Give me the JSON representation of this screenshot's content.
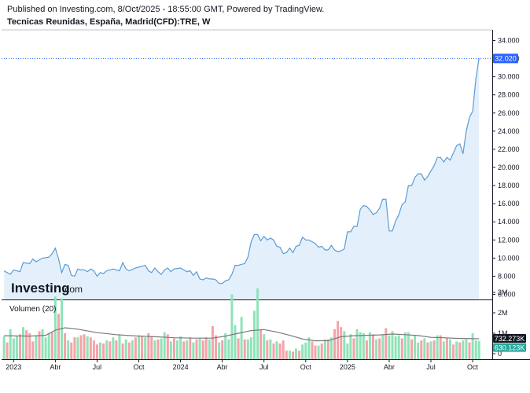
{
  "header": {
    "published": "Published on Investing.com, 8/Oct/2025 - 18:55:00 GMT, Powered by TradingView.",
    "symbol": "Tecnicas Reunidas, España, Madrid(CFD):TRE, W"
  },
  "logo": {
    "main": "Investing",
    "suffix": ".com"
  },
  "colors": {
    "price_line": "#5b9bd5",
    "price_fill": "#e3f0fb",
    "price_badge": "#2962ff",
    "vol_up": "#8fe3b8",
    "vol_down": "#f5a3a8",
    "vol_ma": "#7a7a7a",
    "badge_ma": "#131722",
    "badge_vol": "#26a69a"
  },
  "volume_panel": {
    "label": "Volumen (20)"
  },
  "chart_data": [
    {
      "type": "area",
      "title": "Tecnicas Reunidas, España, Madrid(CFD):TRE, W",
      "x_label_ticks": [
        "2023",
        "Abr",
        "Jul",
        "Oct",
        "2024",
        "Abr",
        "Jul",
        "Oct",
        "2025",
        "Abr",
        "Jul",
        "Oct"
      ],
      "x_label_weeks": [
        0,
        13,
        26,
        39,
        52,
        65,
        78,
        91,
        104,
        117,
        130,
        143
      ],
      "y_ticks": [
        "34.000",
        "32.000",
        "30.000",
        "28.000",
        "26.000",
        "24.000",
        "22.000",
        "20.000",
        "18.000",
        "16.000",
        "14.000",
        "12.000",
        "10.000",
        "8.000",
        "6.000"
      ],
      "ylim": [
        6,
        34
      ],
      "last_value_label": "32.020",
      "last_value": 32.02,
      "points": [
        [
          -3,
          8.6
        ],
        [
          -1,
          8.2
        ],
        [
          0,
          8.7
        ],
        [
          2,
          8.5
        ],
        [
          3,
          9.5
        ],
        [
          5,
          9.4
        ],
        [
          6,
          9.9
        ],
        [
          7,
          9.6
        ],
        [
          9,
          10.0
        ],
        [
          11,
          10.1
        ],
        [
          12,
          10.5
        ],
        [
          13,
          11.1
        ],
        [
          14,
          9.9
        ],
        [
          15,
          8.4
        ],
        [
          16,
          9.3
        ],
        [
          17,
          9.2
        ],
        [
          18,
          8.1
        ],
        [
          19,
          8.0
        ],
        [
          20,
          8.8
        ],
        [
          21,
          8.7
        ],
        [
          22,
          8.7
        ],
        [
          23,
          8.5
        ],
        [
          24,
          8.8
        ],
        [
          25,
          8.6
        ],
        [
          26,
          8.0
        ],
        [
          27,
          8.4
        ],
        [
          28,
          8.3
        ],
        [
          29,
          8.6
        ],
        [
          31,
          8.8
        ],
        [
          33,
          8.6
        ],
        [
          34,
          9.5
        ],
        [
          35,
          8.8
        ],
        [
          36,
          8.6
        ],
        [
          38,
          8.9
        ],
        [
          40,
          9.1
        ],
        [
          41,
          9.2
        ],
        [
          42,
          8.6
        ],
        [
          43,
          8.4
        ],
        [
          44,
          8.9
        ],
        [
          45,
          8.5
        ],
        [
          46,
          8.2
        ],
        [
          47,
          8.7
        ],
        [
          48,
          8.9
        ],
        [
          49,
          8.5
        ],
        [
          50,
          8.8
        ],
        [
          52,
          8.9
        ],
        [
          53,
          8.7
        ],
        [
          54,
          8.5
        ],
        [
          55,
          8.6
        ],
        [
          56,
          8.1
        ],
        [
          57,
          8.5
        ],
        [
          58,
          7.7
        ],
        [
          59,
          7.6
        ],
        [
          60,
          7.8
        ],
        [
          61,
          7.7
        ],
        [
          62,
          7.7
        ],
        [
          63,
          7.6
        ],
        [
          64,
          7.2
        ],
        [
          65,
          7.2
        ],
        [
          66,
          7.5
        ],
        [
          67,
          7.6
        ],
        [
          68,
          8.2
        ],
        [
          69,
          9.2
        ],
        [
          70,
          9.2
        ],
        [
          71,
          9.3
        ],
        [
          72,
          9.4
        ],
        [
          73,
          10.1
        ],
        [
          74,
          11.8
        ],
        [
          75,
          12.6
        ],
        [
          76,
          12.6
        ],
        [
          77,
          11.9
        ],
        [
          78,
          12.4
        ],
        [
          79,
          12.0
        ],
        [
          80,
          12.2
        ],
        [
          81,
          12.0
        ],
        [
          82,
          11.3
        ],
        [
          83,
          11.2
        ],
        [
          84,
          10.5
        ],
        [
          85,
          10.6
        ],
        [
          86,
          11.1
        ],
        [
          87,
          10.6
        ],
        [
          88,
          11.3
        ],
        [
          89,
          11.4
        ],
        [
          90,
          12.3
        ],
        [
          91,
          12.0
        ],
        [
          92,
          12.0
        ],
        [
          93,
          11.8
        ],
        [
          94,
          11.6
        ],
        [
          95,
          11.2
        ],
        [
          96,
          11.3
        ],
        [
          97,
          10.9
        ],
        [
          98,
          10.9
        ],
        [
          99,
          11.4
        ],
        [
          100,
          10.9
        ],
        [
          101,
          10.7
        ],
        [
          102,
          10.8
        ],
        [
          103,
          11.0
        ],
        [
          104,
          12.9
        ],
        [
          105,
          12.9
        ],
        [
          106,
          13.5
        ],
        [
          107,
          13.5
        ],
        [
          108,
          15.4
        ],
        [
          109,
          15.8
        ],
        [
          110,
          15.7
        ],
        [
          111,
          15.3
        ],
        [
          112,
          14.8
        ],
        [
          113,
          15.0
        ],
        [
          114,
          15.5
        ],
        [
          115,
          16.5
        ],
        [
          116,
          16.5
        ],
        [
          117,
          13.0
        ],
        [
          118,
          13.0
        ],
        [
          119,
          14.1
        ],
        [
          120,
          14.8
        ],
        [
          121,
          15.9
        ],
        [
          122,
          16.2
        ],
        [
          123,
          18.0
        ],
        [
          124,
          18.0
        ],
        [
          125,
          18.9
        ],
        [
          126,
          19.3
        ],
        [
          127,
          19.3
        ],
        [
          128,
          18.6
        ],
        [
          129,
          19.0
        ],
        [
          130,
          19.6
        ],
        [
          131,
          20.2
        ],
        [
          132,
          21.1
        ],
        [
          133,
          21.1
        ],
        [
          134,
          20.6
        ],
        [
          135,
          21.1
        ],
        [
          136,
          20.8
        ],
        [
          137,
          21.6
        ],
        [
          138,
          22.4
        ],
        [
          139,
          22.6
        ],
        [
          140,
          21.5
        ],
        [
          141,
          24.0
        ],
        [
          142,
          25.5
        ],
        [
          143,
          26.2
        ],
        [
          144,
          29.8
        ],
        [
          145,
          32.02
        ]
      ]
    },
    {
      "type": "bar",
      "title": "Volumen (20)",
      "y_ticks": [
        "3M",
        "2M",
        "1M",
        "0"
      ],
      "ylim": [
        0,
        3400000
      ],
      "ma_value_label": "732.273K",
      "volume_value_label": "630.123K",
      "ma_value": 732273,
      "last_volume": 630123,
      "volumes": [
        -3,
        850000,
        1,
        -2,
        550000,
        0,
        -1,
        1200000,
        1,
        0,
        750000,
        1,
        1,
        850000,
        1,
        2,
        950000,
        0,
        3,
        1300000,
        1,
        4,
        1150000,
        0,
        5,
        1000000,
        0,
        6,
        600000,
        0,
        7,
        900000,
        1,
        8,
        1100000,
        0,
        9,
        1200000,
        1,
        10,
        800000,
        1,
        11,
        1000000,
        1,
        12,
        1050000,
        0,
        13,
        2800000,
        1,
        14,
        1950000,
        0,
        15,
        2700000,
        1,
        16,
        1000000,
        0,
        17,
        650000,
        1,
        18,
        550000,
        0,
        19,
        800000,
        0,
        20,
        800000,
        1,
        21,
        900000,
        0,
        22,
        950000,
        0,
        23,
        850000,
        1,
        24,
        800000,
        0,
        25,
        650000,
        0,
        26,
        450000,
        0,
        27,
        550000,
        1,
        28,
        500000,
        0,
        29,
        650000,
        1,
        30,
        600000,
        0,
        31,
        800000,
        1,
        32,
        650000,
        0,
        33,
        950000,
        1,
        34,
        500000,
        0,
        35,
        700000,
        1,
        36,
        550000,
        0,
        37,
        650000,
        1,
        38,
        800000,
        0,
        39,
        900000,
        1,
        40,
        850000,
        0,
        41,
        800000,
        1,
        42,
        1000000,
        0,
        43,
        850000,
        0,
        44,
        650000,
        1,
        45,
        700000,
        0,
        46,
        750000,
        1,
        47,
        1050000,
        1,
        48,
        950000,
        0,
        49,
        600000,
        1,
        50,
        750000,
        0,
        51,
        650000,
        1,
        52,
        850000,
        1,
        53,
        600000,
        0,
        54,
        650000,
        1,
        55,
        800000,
        0,
        56,
        550000,
        1,
        57,
        700000,
        0,
        58,
        750000,
        1,
        59,
        650000,
        0,
        60,
        800000,
        0,
        61,
        700000,
        1,
        62,
        1350000,
        0,
        63,
        900000,
        0,
        64,
        550000,
        1,
        65,
        650000,
        0,
        66,
        1000000,
        1,
        67,
        700000,
        1,
        68,
        2900000,
        1,
        69,
        1400000,
        1,
        70,
        750000,
        0,
        71,
        1800000,
        1,
        72,
        700000,
        0,
        73,
        700000,
        1,
        74,
        800000,
        1,
        75,
        2100000,
        1,
        76,
        3200000,
        1,
        77,
        1200000,
        0,
        78,
        950000,
        1,
        79,
        650000,
        0,
        80,
        700000,
        1,
        81,
        500000,
        0,
        82,
        600000,
        1,
        83,
        500000,
        0,
        84,
        650000,
        0,
        85,
        150000,
        0,
        86,
        150000,
        1,
        87,
        100000,
        0,
        88,
        250000,
        1,
        89,
        150000,
        0,
        90,
        450000,
        1,
        91,
        550000,
        1,
        92,
        800000,
        1,
        93,
        600000,
        0,
        94,
        400000,
        0,
        95,
        400000,
        1,
        96,
        500000,
        0,
        97,
        700000,
        1,
        98,
        700000,
        0,
        99,
        800000,
        1,
        100,
        1200000,
        0,
        101,
        1600000,
        0,
        102,
        1300000,
        0,
        103,
        1100000,
        1,
        104,
        500000,
        1,
        105,
        950000,
        1,
        106,
        750000,
        0,
        107,
        1200000,
        1,
        108,
        1050000,
        1,
        109,
        1000000,
        1,
        110,
        650000,
        0,
        111,
        1050000,
        1,
        112,
        950000,
        0,
        113,
        700000,
        1,
        114,
        750000,
        0,
        115,
        900000,
        1,
        116,
        1250000,
        0,
        117,
        900000,
        1,
        118,
        1100000,
        1,
        119,
        850000,
        1,
        120,
        900000,
        1,
        121,
        750000,
        0,
        122,
        1050000,
        1,
        123,
        1050000,
        1,
        124,
        700000,
        0,
        125,
        900000,
        1,
        126,
        550000,
        1,
        127,
        650000,
        0,
        128,
        750000,
        1,
        129,
        550000,
        0,
        130,
        600000,
        1,
        131,
        650000,
        0,
        132,
        900000,
        1,
        133,
        900000,
        0,
        134,
        600000,
        1,
        135,
        750000,
        0,
        136,
        700000,
        1,
        137,
        450000,
        0,
        138,
        600000,
        1,
        139,
        550000,
        0,
        140,
        650000,
        1,
        141,
        700000,
        1,
        142,
        550000,
        0,
        143,
        1000000,
        1,
        144,
        650000,
        1,
        145,
        630123,
        1
      ],
      "ma_line": [
        [
          -3,
          880000
        ],
        [
          5,
          860000
        ],
        [
          10,
          900000
        ],
        [
          13,
          1150000
        ],
        [
          16,
          1270000
        ],
        [
          20,
          1200000
        ],
        [
          26,
          1030000
        ],
        [
          32,
          930000
        ],
        [
          38,
          870000
        ],
        [
          44,
          830000
        ],
        [
          50,
          780000
        ],
        [
          56,
          760000
        ],
        [
          62,
          760000
        ],
        [
          66,
          860000
        ],
        [
          70,
          1000000
        ],
        [
          74,
          1130000
        ],
        [
          78,
          1180000
        ],
        [
          82,
          1060000
        ],
        [
          86,
          900000
        ],
        [
          90,
          720000
        ],
        [
          94,
          630000
        ],
        [
          98,
          640000
        ],
        [
          102,
          830000
        ],
        [
          106,
          880000
        ],
        [
          110,
          900000
        ],
        [
          114,
          920000
        ],
        [
          118,
          960000
        ],
        [
          122,
          930000
        ],
        [
          126,
          890000
        ],
        [
          130,
          800000
        ],
        [
          134,
          780000
        ],
        [
          138,
          750000
        ],
        [
          145,
          732273
        ]
      ]
    }
  ]
}
